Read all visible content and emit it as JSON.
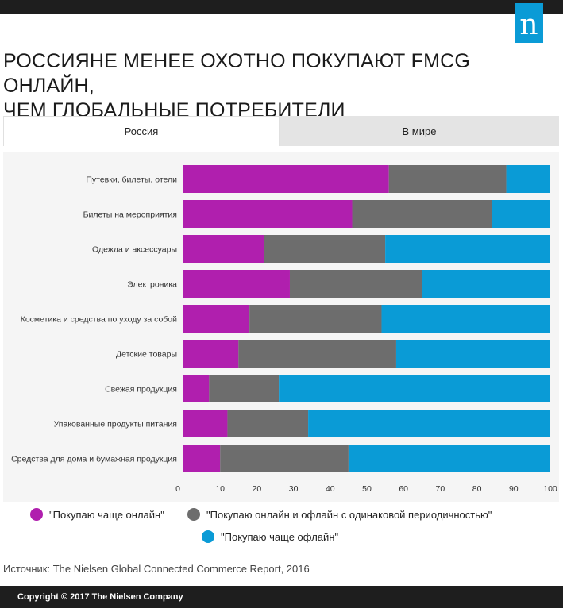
{
  "header": {
    "title_line1": "РОССИЯНЕ МЕНЕЕ ОХОТНО ПОКУПАЮТ FMCG ОНЛАЙН,",
    "title_line2": "ЧЕМ ГЛОБАЛЬНЫЕ ПОТРЕБИТЕЛИ",
    "logo_letter": "n"
  },
  "tabs": [
    {
      "label": "Россия",
      "active": true
    },
    {
      "label": "В мире",
      "active": false
    }
  ],
  "colors": {
    "online": "#b01fae",
    "equal": "#6d6d6d",
    "offline": "#0a9bd6"
  },
  "chart_data": {
    "type": "bar",
    "orientation": "horizontal",
    "stacked": true,
    "categories": [
      "Путевки, билеты, отели",
      "Билеты на мероприятия",
      "Одежда и аксессуары",
      "Электроника",
      "Косметика и средства по уходу за собой",
      "Детские товары",
      "Свежая продукция",
      "Упакованные продукты питания",
      "Средства для дома и бумажная продукция"
    ],
    "series": [
      {
        "name": "\"Покупаю чаще онлайн\"",
        "color": "#b01fae",
        "values": [
          56,
          46,
          22,
          29,
          18,
          15,
          7,
          12,
          10
        ]
      },
      {
        "name": "\"Покупаю онлайн и офлайн с одинаковой периодичностью\"",
        "color": "#6d6d6d",
        "values": [
          32,
          38,
          33,
          36,
          36,
          43,
          19,
          22,
          35
        ]
      },
      {
        "name": "\"Покупаю чаще офлайн\"",
        "color": "#0a9bd6",
        "values": [
          12,
          16,
          45,
          35,
          46,
          42,
          74,
          66,
          55
        ]
      }
    ],
    "xlim": [
      0,
      100
    ],
    "xticks": [
      "0",
      "10",
      "20",
      "30",
      "40",
      "50",
      "60",
      "70",
      "80",
      "90",
      "100"
    ],
    "legend_position": "bottom"
  },
  "source": "Источник: The Nielsen Global Connected Commerce Report, 2016",
  "footer": "Copyright © 2017 The Nielsen Company"
}
